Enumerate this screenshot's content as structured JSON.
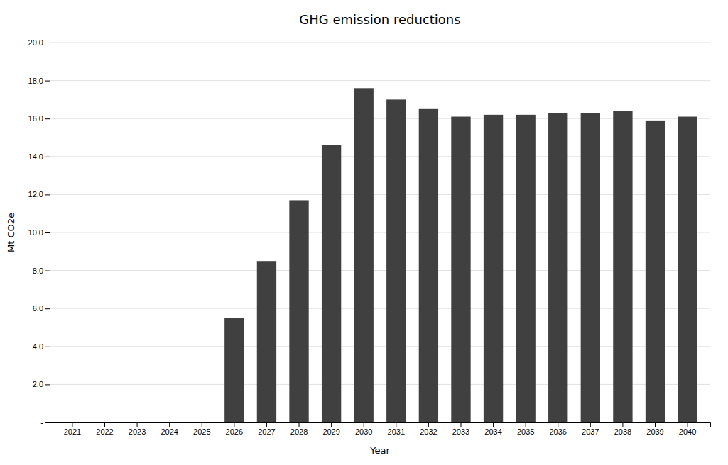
{
  "chart_data": {
    "type": "bar",
    "title": "GHG emission reductions",
    "xlabel": "Year",
    "ylabel": "Mt CO2e",
    "categories": [
      2021,
      2022,
      2023,
      2024,
      2025,
      2026,
      2027,
      2028,
      2029,
      2030,
      2031,
      2032,
      2033,
      2034,
      2035,
      2036,
      2037,
      2038,
      2039,
      2040
    ],
    "values": [
      0,
      0,
      0,
      0,
      0,
      5.5,
      8.5,
      11.7,
      14.6,
      17.6,
      17.0,
      16.5,
      16.1,
      16.2,
      16.2,
      16.3,
      16.3,
      16.4,
      15.9,
      16.1
    ],
    "color": "#404040",
    "ylim": [
      0,
      20.0
    ],
    "yticks": [
      {
        "value": 0,
        "label": "-"
      },
      {
        "value": 2.0,
        "label": "2.0"
      },
      {
        "value": 4.0,
        "label": "4.0"
      },
      {
        "value": 6.0,
        "label": "6.0"
      },
      {
        "value": 8.0,
        "label": "8.0"
      },
      {
        "value": 10.0,
        "label": "10.0"
      },
      {
        "value": 12.0,
        "label": "12.0"
      },
      {
        "value": 14.0,
        "label": "14.0"
      },
      {
        "value": 16.0,
        "label": "16.0"
      },
      {
        "value": 18.0,
        "label": "18.0"
      },
      {
        "value": 20.0,
        "label": "20.0"
      }
    ],
    "grid": true
  }
}
